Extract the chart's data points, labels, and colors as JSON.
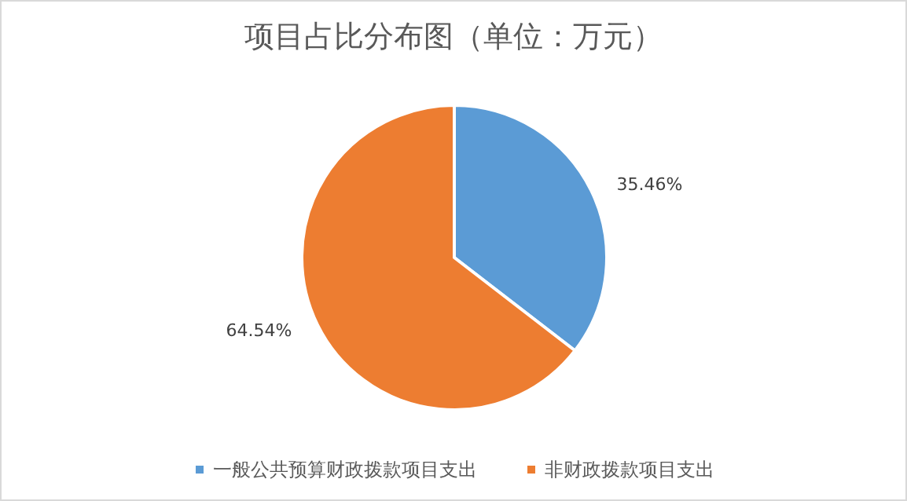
{
  "chart_data": {
    "type": "pie",
    "title": "项目占比分布图（单位：万元）",
    "categories": [
      "一般公共预算财政拨款项目支出",
      "非财政拨款项目支出"
    ],
    "values": [
      35.46,
      64.54
    ],
    "colors": [
      "#5b9bd5",
      "#ed7d31"
    ],
    "value_labels": [
      "35.46%",
      "64.54%"
    ],
    "legend": "bottom"
  }
}
